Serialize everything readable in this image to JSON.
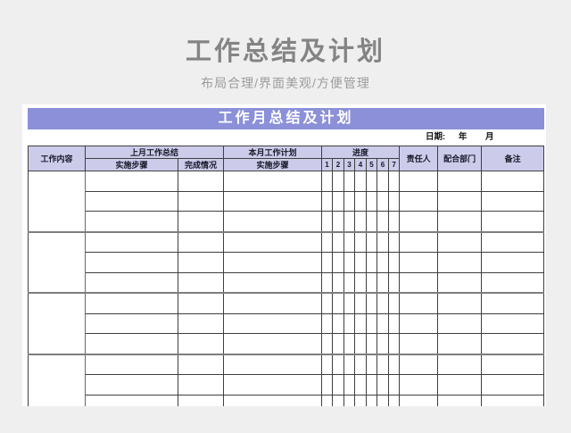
{
  "page": {
    "title": "工作总结及计划",
    "subtitle": "布局合理/界面美观/方便管理"
  },
  "sheet": {
    "banner_title": "工作月总结及计划",
    "date": {
      "label": "日期:",
      "year_label": "年",
      "month_label": "月"
    }
  },
  "table": {
    "headers": {
      "work_content": "工作内容",
      "last_month_summary": "上月工作总结",
      "implementation_steps": "实施步骤",
      "completion_status": "完成情况",
      "this_month_plan": "本月工作计划",
      "implementation_steps2": "实施步骤",
      "progress": "进度",
      "progress_days": [
        "1",
        "2",
        "3",
        "4",
        "5",
        "6",
        "7"
      ],
      "responsible_person": "责任人",
      "cooperating_dept": "配合部门",
      "remarks": "备注"
    },
    "body": {
      "group_count": 4,
      "rows_per_group": 3,
      "data_columns": 13,
      "partial_row": true,
      "cells_empty": true
    }
  },
  "colors": {
    "canvas_bg": "#efeff0",
    "banner_bg": "#8b90d8",
    "header_bg": "#ccccea",
    "title_text": "#848484"
  }
}
